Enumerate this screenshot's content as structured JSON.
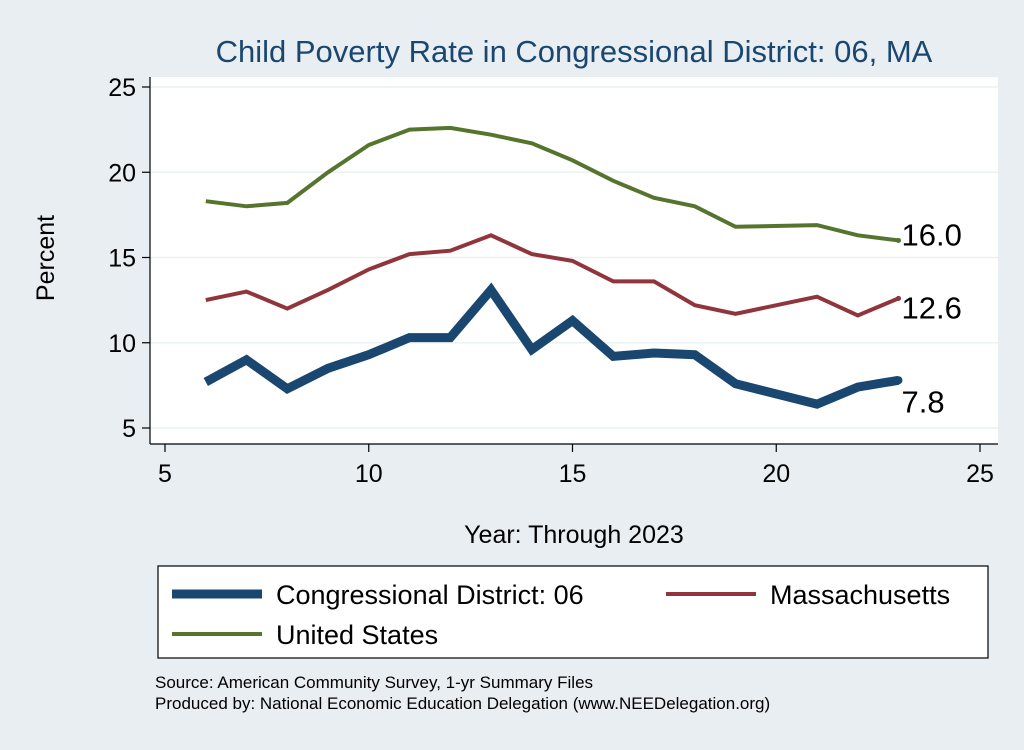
{
  "chart_data": {
    "type": "line",
    "title": "Child Poverty Rate in Congressional District:  06, MA",
    "xlabel": "Year: Through 2023",
    "ylabel": "Percent",
    "xlim": [
      5,
      25
    ],
    "ylim": [
      5,
      25
    ],
    "xticks": [
      5,
      10,
      15,
      20,
      25
    ],
    "yticks": [
      5,
      10,
      15,
      20,
      25
    ],
    "grid": true,
    "legend_position": "bottom",
    "series": [
      {
        "name": "Congressional District:  06",
        "color": "#1a476f",
        "x": [
          6,
          7,
          8,
          9,
          10,
          11,
          12,
          13,
          14,
          15,
          16,
          17,
          18,
          19,
          21,
          22,
          23
        ],
        "y": [
          7.7,
          9.0,
          7.3,
          8.5,
          9.3,
          10.3,
          10.3,
          13.1,
          9.6,
          11.3,
          9.2,
          9.4,
          9.3,
          7.6,
          6.4,
          7.4,
          7.8
        ],
        "end_label": "7.8"
      },
      {
        "name": "Massachusetts",
        "color": "#90353b",
        "x": [
          6,
          7,
          8,
          9,
          10,
          11,
          12,
          13,
          14,
          15,
          16,
          17,
          18,
          19,
          21,
          22,
          23
        ],
        "y": [
          12.5,
          13.0,
          12.0,
          13.1,
          14.3,
          15.2,
          15.4,
          16.3,
          15.2,
          14.8,
          13.6,
          13.6,
          12.2,
          11.7,
          12.7,
          11.6,
          12.6
        ],
        "end_label": "12.6"
      },
      {
        "name": "United States",
        "color": "#55752f",
        "x": [
          6,
          7,
          8,
          9,
          10,
          11,
          12,
          13,
          14,
          15,
          16,
          17,
          18,
          19,
          21,
          22,
          23
        ],
        "y": [
          18.3,
          18.0,
          18.2,
          20.0,
          21.6,
          22.5,
          22.6,
          22.2,
          21.7,
          20.7,
          19.5,
          18.5,
          18.0,
          16.8,
          16.9,
          16.3,
          16.0
        ],
        "end_label": "16.0"
      }
    ]
  },
  "source_lines": [
    "Source: American Community Survey, 1-yr Summary Files",
    "Produced by: National Economic Education Delegation (www.NEEDelegation.org)"
  ]
}
